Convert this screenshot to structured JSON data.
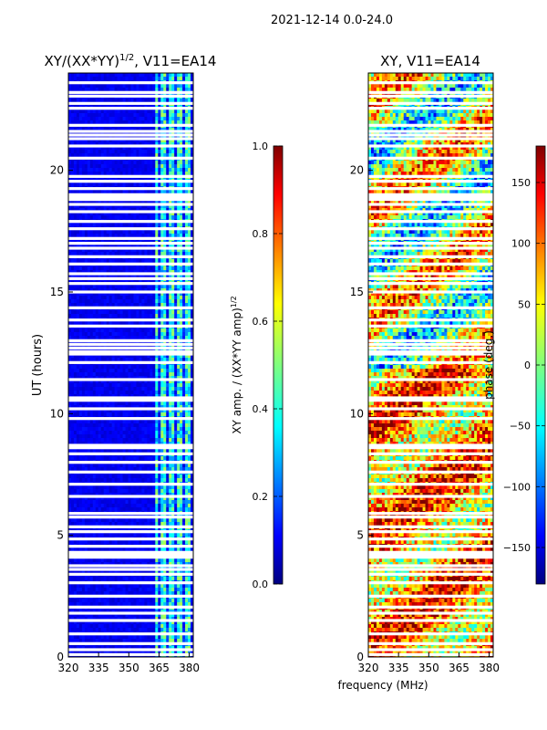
{
  "figure": {
    "suptitle": "2021-12-14 0.0-24.0",
    "xlabel_shared": "frequency (MHz)"
  },
  "colors": {
    "jet": [
      "#00007f",
      "#0000ff",
      "#007fff",
      "#00ffff",
      "#7fff7f",
      "#ffff00",
      "#ff7f00",
      "#ff0000",
      "#7f0000"
    ],
    "axes": "#000000",
    "gap": "#ffffff"
  },
  "chart_data": [
    {
      "type": "heatmap",
      "name": "amplitude-panel",
      "title_main": "XY/(XX*YY)",
      "title_sup": "1/2",
      "title_tail": ", V11=EA14",
      "xlabel": "",
      "ylabel": "UT (hours)",
      "xlim": [
        320,
        382
      ],
      "ylim": [
        0,
        24
      ],
      "x_ticks": [
        320,
        335,
        350,
        365,
        380
      ],
      "y_ticks": [
        0,
        5,
        10,
        15,
        20
      ],
      "colorbar": {
        "label_main": "XY amp. / (XX*YY amp)",
        "label_sup": "1/2",
        "range": [
          0.0,
          1.0
        ],
        "ticks": [
          "0.0",
          "0.2",
          "0.4",
          "0.6",
          "0.8",
          "1.0"
        ]
      }
    },
    {
      "type": "heatmap",
      "name": "phase-panel",
      "title": "XY, V11=EA14",
      "xlabel": "frequency (MHz)",
      "ylabel": "",
      "xlim": [
        320,
        382
      ],
      "ylim": [
        0,
        24
      ],
      "x_ticks": [
        320,
        335,
        350,
        365,
        380
      ],
      "y_ticks": [
        0,
        5,
        10,
        15,
        20
      ],
      "colorbar": {
        "label": "phase (deg.)",
        "range": [
          -180,
          180
        ],
        "ticks": [
          "−150",
          "−100",
          "−50",
          "0",
          "50",
          "100",
          "150"
        ]
      }
    }
  ],
  "flagged_hours": [
    0.1,
    0.3,
    0.55,
    0.95,
    1.5,
    1.8,
    2.05,
    2.5,
    3.05,
    3.4,
    3.6,
    3.75,
    4.1,
    4.2,
    4.3,
    4.55,
    4.85,
    5.15,
    5.35,
    5.75,
    5.9,
    6.6,
    7.1,
    7.6,
    8.0,
    8.35,
    8.6,
    8.7,
    9.8,
    10.2,
    10.55,
    10.65,
    11.4,
    12.1,
    12.45,
    12.55,
    12.7,
    12.85,
    13.0,
    13.6,
    13.85,
    14.35,
    15.0,
    15.35,
    15.55,
    15.75,
    16.15,
    16.45,
    16.8,
    17.0,
    17.2,
    17.6,
    17.9,
    18.3,
    18.6,
    18.8,
    18.9,
    19.0,
    19.25,
    19.55,
    19.75,
    20.5,
    21.0,
    21.3,
    21.45,
    21.6,
    21.85,
    22.55,
    22.75,
    23.05,
    23.2,
    23.6
  ]
}
